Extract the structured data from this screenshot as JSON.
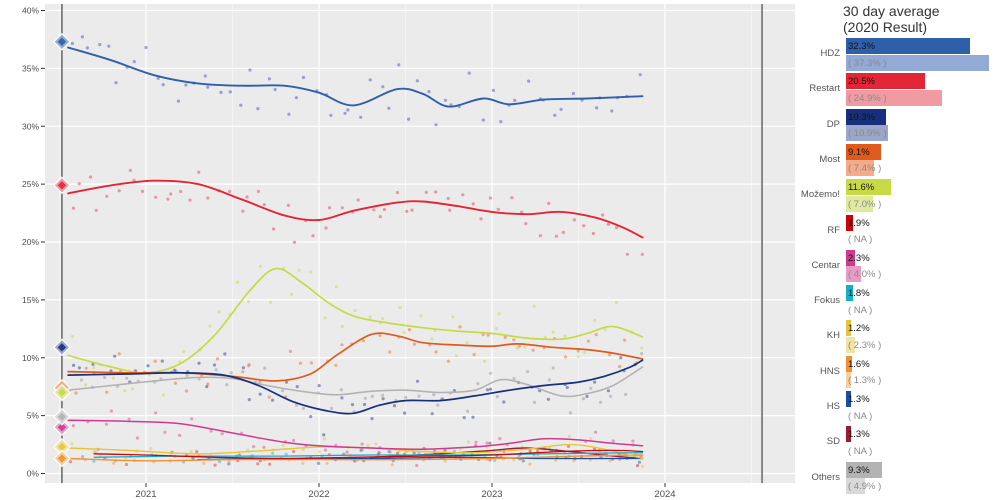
{
  "legend": {
    "title_line1": "30 day average",
    "title_line2": "(2020 Result)"
  },
  "style": {
    "panel_bg": "#ebebeb",
    "grid": "#ffffff",
    "axis_text": "#4d4d4d",
    "tick_mark": "#333333",
    "election_line": "#6e6e6e"
  },
  "chart_data": {
    "type": "scatter",
    "description": "Croatian parliamentary election opinion polls: scatter of individual polls with smoothed trend lines per party, vertical lines at 2020 and 2024 elections, diamond markers = 2020 results",
    "x_axis": {
      "range": [
        2020.42,
        2024.75
      ],
      "ticks": [
        {
          "t": 2021,
          "label": "2021"
        },
        {
          "t": 2022,
          "label": "2022"
        },
        {
          "t": 2023,
          "label": "2023"
        },
        {
          "t": 2024,
          "label": "2024"
        }
      ],
      "minor": [
        2020.5,
        2021.5,
        2022.5,
        2023.5,
        2024.5
      ]
    },
    "y_axis": {
      "range": [
        0,
        40
      ],
      "ticks": [
        {
          "v": 0,
          "label": "0%"
        },
        {
          "v": 5,
          "label": "5%"
        },
        {
          "v": 10,
          "label": "10%"
        },
        {
          "v": 15,
          "label": "15%"
        },
        {
          "v": 20,
          "label": "20%"
        },
        {
          "v": 25,
          "label": "25%"
        },
        {
          "v": 30,
          "label": "30%"
        },
        {
          "v": 35,
          "label": "35%"
        },
        {
          "v": 40,
          "label": "40%"
        }
      ]
    },
    "election_lines": [
      2020.514,
      2024.561
    ],
    "parties": [
      {
        "id": "hdz",
        "label": "HDZ",
        "avg_label": "32.3%",
        "avg_value": 32.3,
        "result2020_label": "( 37.3% )",
        "result2020_value": 37.3,
        "color": "#2e5fa8",
        "light": "#93aad7",
        "dot": "#5065b8",
        "line_width": 1.9,
        "seed": 11,
        "dot_n": 62,
        "dot_sd": 1.5,
        "dot_from": 2020.55,
        "line": [
          [
            2020.55,
            36.8
          ],
          [
            2020.8,
            35.7
          ],
          [
            2021.05,
            34.4
          ],
          [
            2021.3,
            33.7
          ],
          [
            2021.55,
            33.5
          ],
          [
            2021.8,
            33.5
          ],
          [
            2022.0,
            32.9
          ],
          [
            2022.2,
            31.8
          ],
          [
            2022.45,
            33.2
          ],
          [
            2022.6,
            32.8
          ],
          [
            2022.75,
            31.7
          ],
          [
            2022.95,
            32.4
          ],
          [
            2023.1,
            31.9
          ],
          [
            2023.3,
            32.3
          ],
          [
            2023.55,
            32.4
          ],
          [
            2023.87,
            32.6
          ]
        ]
      },
      {
        "id": "restart",
        "label": "Restart",
        "avg_label": "20.5%",
        "avg_value": 20.5,
        "result2020_label": "( 24.9% )",
        "result2020_value": 24.9,
        "color": "#e32636",
        "light": "#f19aa2",
        "dot": "#e0545e",
        "line_width": 1.9,
        "seed": 22,
        "dot_n": 62,
        "dot_sd": 1.15,
        "dot_from": 2020.55,
        "line": [
          [
            2020.55,
            24.2
          ],
          [
            2020.8,
            24.9
          ],
          [
            2021.05,
            25.3
          ],
          [
            2021.3,
            25.0
          ],
          [
            2021.55,
            23.7
          ],
          [
            2021.8,
            22.3
          ],
          [
            2022.0,
            21.9
          ],
          [
            2022.2,
            22.7
          ],
          [
            2022.45,
            23.4
          ],
          [
            2022.6,
            23.5
          ],
          [
            2022.8,
            23.1
          ],
          [
            2023.0,
            22.6
          ],
          [
            2023.2,
            22.4
          ],
          [
            2023.4,
            22.6
          ],
          [
            2023.6,
            22.1
          ],
          [
            2023.75,
            21.3
          ],
          [
            2023.87,
            20.4
          ]
        ]
      },
      {
        "id": "dp",
        "label": "DP",
        "avg_label": "10.3%",
        "avg_value": 10.3,
        "result2020_label": "( 10.9% )",
        "result2020_value": 10.9,
        "color": "#16307d",
        "light": "#9aa7c9",
        "dot": "#3d4f8f",
        "line_width": 1.7,
        "seed": 33,
        "dot_n": 52,
        "dot_sd": 1.05,
        "dot_from": 2020.55,
        "line": [
          [
            2020.55,
            8.5
          ],
          [
            2020.9,
            8.6
          ],
          [
            2021.2,
            8.7
          ],
          [
            2021.45,
            8.5
          ],
          [
            2021.65,
            7.6
          ],
          [
            2021.85,
            6.2
          ],
          [
            2022.05,
            5.4
          ],
          [
            2022.2,
            5.2
          ],
          [
            2022.35,
            5.9
          ],
          [
            2022.5,
            6.3
          ],
          [
            2022.7,
            6.3
          ],
          [
            2022.9,
            6.7
          ],
          [
            2023.1,
            7.2
          ],
          [
            2023.3,
            7.6
          ],
          [
            2023.5,
            7.9
          ],
          [
            2023.65,
            8.4
          ],
          [
            2023.8,
            9.2
          ],
          [
            2023.87,
            9.8
          ]
        ]
      },
      {
        "id": "most",
        "label": "Most",
        "avg_label": "9.1%",
        "avg_value": 9.1,
        "result2020_label": "( 7.4% )",
        "result2020_value": 7.4,
        "color": "#e05a1b",
        "light": "#f3ab88",
        "dot": "#e4773f",
        "line_width": 1.7,
        "seed": 44,
        "dot_n": 55,
        "dot_sd": 1.1,
        "dot_from": 2020.55,
        "line": [
          [
            2020.55,
            8.8
          ],
          [
            2020.9,
            8.7
          ],
          [
            2021.2,
            8.7
          ],
          [
            2021.5,
            8.4
          ],
          [
            2021.75,
            8.0
          ],
          [
            2021.95,
            8.6
          ],
          [
            2022.1,
            10.2
          ],
          [
            2022.3,
            12.0
          ],
          [
            2022.45,
            11.9
          ],
          [
            2022.6,
            11.3
          ],
          [
            2022.8,
            11.1
          ],
          [
            2023.0,
            11.0
          ],
          [
            2023.15,
            11.2
          ],
          [
            2023.35,
            10.9
          ],
          [
            2023.55,
            10.7
          ],
          [
            2023.7,
            10.4
          ],
          [
            2023.87,
            9.9
          ]
        ]
      },
      {
        "id": "mozemo",
        "label": "Možemo!",
        "avg_label": "11.6%",
        "avg_value": 11.6,
        "result2020_label": "( 7.0% )",
        "result2020_value": 7.0,
        "color": "#c7da45",
        "light": "#e0ea9e",
        "dot": "#ccd95e",
        "line_width": 1.7,
        "seed": 55,
        "dot_n": 55,
        "dot_sd": 1.35,
        "dot_from": 2020.55,
        "line": [
          [
            2020.55,
            10.2
          ],
          [
            2020.8,
            9.2
          ],
          [
            2021.0,
            8.7
          ],
          [
            2021.2,
            9.5
          ],
          [
            2021.4,
            12.0
          ],
          [
            2021.6,
            15.8
          ],
          [
            2021.75,
            17.7
          ],
          [
            2021.9,
            16.5
          ],
          [
            2022.05,
            14.8
          ],
          [
            2022.2,
            13.6
          ],
          [
            2022.4,
            13.0
          ],
          [
            2022.6,
            12.6
          ],
          [
            2022.8,
            12.3
          ],
          [
            2023.0,
            12.1
          ],
          [
            2023.2,
            11.7
          ],
          [
            2023.4,
            11.6
          ],
          [
            2023.55,
            12.1
          ],
          [
            2023.7,
            12.7
          ],
          [
            2023.87,
            11.8
          ]
        ]
      },
      {
        "id": "rf",
        "label": "RF",
        "avg_label": "1.9%",
        "avg_value": 1.9,
        "result2020_label": "( NA )",
        "result2020_value": null,
        "color": "#cc0605",
        "light": null,
        "dot": "#d3494a",
        "line_width": 1.3,
        "seed": 66,
        "dot_n": 32,
        "dot_sd": 0.4,
        "dot_from": 2020.55,
        "line": [
          [
            2020.7,
            1.7
          ],
          [
            2021.0,
            1.6
          ],
          [
            2021.4,
            1.4
          ],
          [
            2021.8,
            1.3
          ],
          [
            2022.2,
            1.4
          ],
          [
            2022.6,
            1.5
          ],
          [
            2023.0,
            1.6
          ],
          [
            2023.4,
            1.9
          ],
          [
            2023.7,
            2.0
          ],
          [
            2023.87,
            1.9
          ]
        ]
      },
      {
        "id": "centar",
        "label": "Centar",
        "avg_label": "2.3%",
        "avg_value": 2.3,
        "result2020_label": "( 4.0% )",
        "result2020_value": 4.0,
        "color": "#cf3a8e",
        "light": "#e79cc6",
        "dot": "#d65f9f",
        "line_width": 1.5,
        "seed": 77,
        "dot_n": 42,
        "dot_sd": 0.8,
        "dot_from": 2020.55,
        "line": [
          [
            2020.55,
            4.6
          ],
          [
            2020.9,
            4.5
          ],
          [
            2021.2,
            4.3
          ],
          [
            2021.5,
            3.5
          ],
          [
            2021.8,
            2.7
          ],
          [
            2022.0,
            2.4
          ],
          [
            2022.3,
            2.2
          ],
          [
            2022.6,
            2.1
          ],
          [
            2022.9,
            2.3
          ],
          [
            2023.1,
            2.6
          ],
          [
            2023.3,
            3.0
          ],
          [
            2023.5,
            2.9
          ],
          [
            2023.7,
            2.6
          ],
          [
            2023.87,
            2.4
          ]
        ]
      },
      {
        "id": "fokus",
        "label": "Fokus",
        "avg_label": "1.8%",
        "avg_value": 1.8,
        "result2020_label": "( NA )",
        "result2020_value": null,
        "color": "#13b0ca",
        "light": null,
        "dot": "#3fb9cd",
        "line_width": 1.3,
        "seed": 88,
        "dot_n": 30,
        "dot_sd": 0.35,
        "dot_from": 2020.55,
        "line": [
          [
            2020.7,
            1.4
          ],
          [
            2021.2,
            1.5
          ],
          [
            2021.8,
            1.5
          ],
          [
            2022.3,
            1.6
          ],
          [
            2022.8,
            1.6
          ],
          [
            2023.3,
            1.7
          ],
          [
            2023.87,
            1.8
          ]
        ]
      },
      {
        "id": "kh",
        "label": "KH",
        "avg_label": "1.2%",
        "avg_value": 1.2,
        "result2020_label": "( 2.3% )",
        "result2020_value": 2.3,
        "color": "#e5c53b",
        "light": "#f1e3a4",
        "dot": "#e0c75c",
        "line_width": 1.4,
        "seed": 99,
        "dot_n": 36,
        "dot_sd": 0.5,
        "dot_from": 2020.55,
        "line": [
          [
            2020.55,
            2.2
          ],
          [
            2020.9,
            2.0
          ],
          [
            2021.3,
            1.7
          ],
          [
            2021.7,
            2.0
          ],
          [
            2022.0,
            2.3
          ],
          [
            2022.3,
            2.2
          ],
          [
            2022.6,
            1.9
          ],
          [
            2022.9,
            1.8
          ],
          [
            2023.2,
            2.1
          ],
          [
            2023.45,
            2.5
          ],
          [
            2023.65,
            2.1
          ],
          [
            2023.87,
            1.3
          ]
        ]
      },
      {
        "id": "hns",
        "label": "HNS",
        "avg_label": "1.6%",
        "avg_value": 1.6,
        "result2020_label": "( 1.3% )",
        "result2020_value": 1.3,
        "color": "#f29030",
        "light": "#f8cf9f",
        "dot": "#f0a257",
        "line_width": 1.4,
        "seed": 111,
        "dot_n": 30,
        "dot_sd": 0.35,
        "dot_from": 2020.55,
        "line": [
          [
            2020.55,
            1.3
          ],
          [
            2021.0,
            1.1
          ],
          [
            2021.5,
            1.2
          ],
          [
            2022.0,
            1.2
          ],
          [
            2022.5,
            1.2
          ],
          [
            2023.0,
            1.3
          ],
          [
            2023.5,
            1.5
          ],
          [
            2023.87,
            1.6
          ]
        ]
      },
      {
        "id": "hs",
        "label": "HS",
        "avg_label": "1.3%",
        "avg_value": 1.3,
        "result2020_label": "( NA )",
        "result2020_value": null,
        "color": "#1d4fa1",
        "light": null,
        "dot": "#3f66ad",
        "line_width": 1.3,
        "seed": 122,
        "dot_n": 24,
        "dot_sd": 0.3,
        "dot_from": 2021.2,
        "line": [
          [
            2021.3,
            1.2
          ],
          [
            2021.8,
            1.3
          ],
          [
            2022.3,
            1.3
          ],
          [
            2022.8,
            1.4
          ],
          [
            2023.3,
            1.3
          ],
          [
            2023.87,
            1.3
          ]
        ]
      },
      {
        "id": "sd",
        "label": "SD",
        "avg_label": "1.3%",
        "avg_value": 1.3,
        "result2020_label": "( NA )",
        "result2020_value": null,
        "color": "#9b1b33",
        "light": null,
        "dot": "#a84257",
        "line_width": 1.4,
        "seed": 133,
        "dot_n": 20,
        "dot_sd": 0.4,
        "dot_from": 2022.2,
        "line": [
          [
            2022.3,
            1.4
          ],
          [
            2022.7,
            1.7
          ],
          [
            2023.0,
            2.0
          ],
          [
            2023.2,
            2.2
          ],
          [
            2023.45,
            1.9
          ],
          [
            2023.7,
            1.5
          ],
          [
            2023.87,
            1.3
          ]
        ]
      },
      {
        "id": "others",
        "label": "Others",
        "avg_label": "9.3%",
        "avg_value": 9.3,
        "result2020_label": "( 4.9% )",
        "result2020_value": 4.9,
        "color": "#b3b3b3",
        "light": "#d9d9d9",
        "dot": "#9e9e9e",
        "line_width": 1.6,
        "seed": 144,
        "dot_n": 50,
        "dot_sd": 1.05,
        "dot_from": 2020.55,
        "line": [
          [
            2020.55,
            7.2
          ],
          [
            2020.8,
            7.6
          ],
          [
            2021.05,
            8.0
          ],
          [
            2021.3,
            8.3
          ],
          [
            2021.5,
            8.2
          ],
          [
            2021.7,
            7.6
          ],
          [
            2021.9,
            7.1
          ],
          [
            2022.1,
            6.8
          ],
          [
            2022.3,
            7.1
          ],
          [
            2022.5,
            7.2
          ],
          [
            2022.7,
            7.0
          ],
          [
            2022.9,
            7.2
          ],
          [
            2023.05,
            8.1
          ],
          [
            2023.2,
            7.7
          ],
          [
            2023.4,
            6.7
          ],
          [
            2023.55,
            6.9
          ],
          [
            2023.7,
            7.6
          ],
          [
            2023.87,
            9.2
          ]
        ]
      }
    ]
  }
}
